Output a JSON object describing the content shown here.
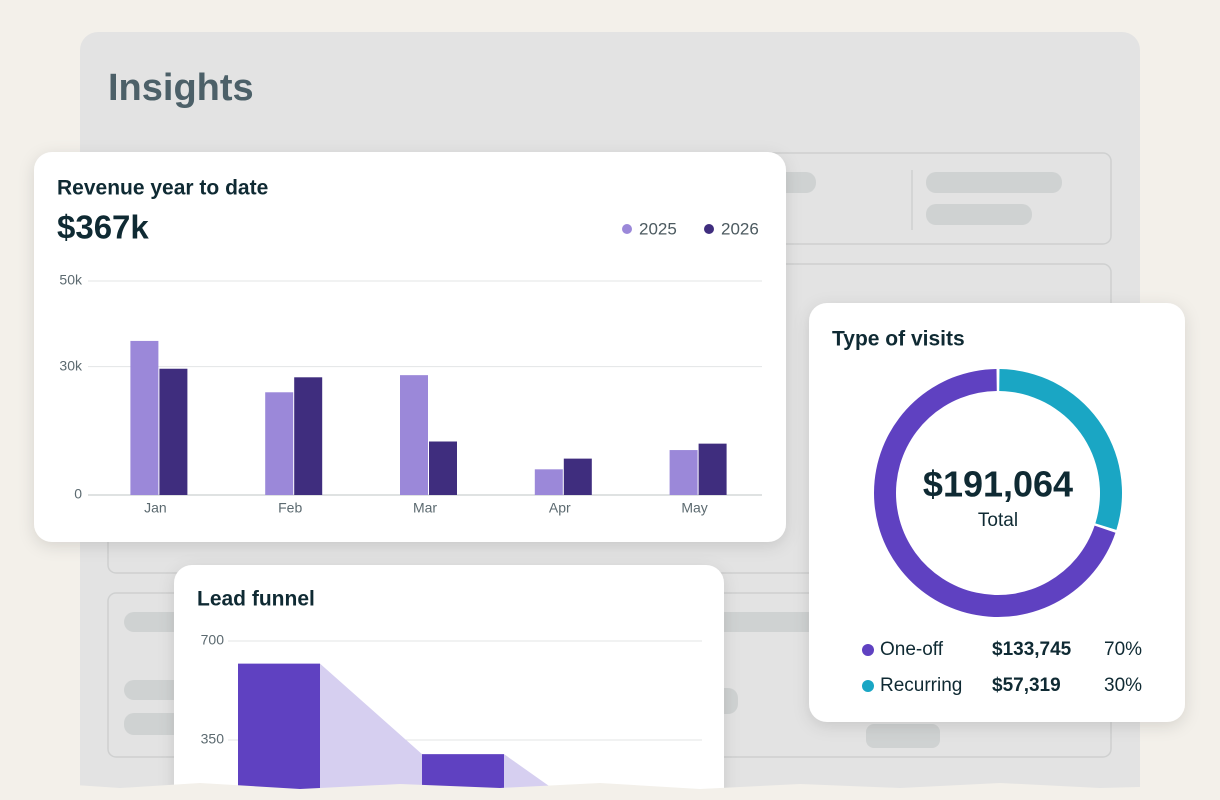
{
  "page": {
    "title": "Insights"
  },
  "chart_data": [
    {
      "type": "bar",
      "title": "Revenue year to date",
      "headline": "$367k",
      "categories": [
        "Jan",
        "Feb",
        "Mar",
        "Apr",
        "May"
      ],
      "series": [
        {
          "name": "2025",
          "color": "#9b88d9",
          "values": [
            36000,
            24000,
            28000,
            6000,
            10500
          ]
        },
        {
          "name": "2026",
          "color": "#3f2d7e",
          "values": [
            29500,
            27500,
            12500,
            8500,
            12000
          ]
        }
      ],
      "ylim": [
        0,
        50000
      ],
      "yticks": [
        0,
        {
          "value": 30000,
          "label": "30k"
        },
        {
          "value": 50000,
          "label": "50k"
        }
      ],
      "grid": true
    },
    {
      "type": "donut",
      "title": "Type of visits",
      "total": "$191,064",
      "total_caption": "Total",
      "categories": [
        "One-off",
        "Recurring"
      ],
      "values": [
        70,
        30
      ],
      "value_labels": [
        "70%",
        "30%"
      ],
      "amounts": [
        "$133,745",
        "$57,319"
      ],
      "colors": [
        "#5f41c1",
        "#1aa6c4"
      ]
    },
    {
      "type": "funnel",
      "title": "Lead funnel",
      "categories": [
        null,
        null
      ],
      "values": [
        620,
        300
      ],
      "color": "#5f41c1",
      "ylim": [
        0,
        700
      ],
      "yticks": [
        350,
        700
      ],
      "grid": true
    }
  ]
}
